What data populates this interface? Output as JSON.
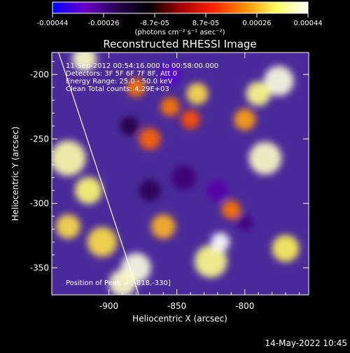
{
  "colorbar": {
    "ticks": [
      "-0.00044",
      "-0.00026",
      "-8.7e-05",
      "8.7e-05",
      "0.00026",
      "0.00044"
    ],
    "unit_label": "(photons cm⁻² s⁻¹ asec⁻²)",
    "range": [
      -0.00044,
      0.00044
    ],
    "stops": [
      "#0000ff",
      "#6a00c8",
      "#2a0055",
      "#000000",
      "#a00000",
      "#ff2000",
      "#ff8c00",
      "#ffff60",
      "#ffffff"
    ]
  },
  "chart_data": {
    "type": "heatmap",
    "title": "Reconstructed RHESSI Image",
    "xlabel": "Heliocentric X (arcsec)",
    "ylabel": "Heliocentric Y (arcsec)",
    "xlim": [
      -942,
      -753
    ],
    "ylim": [
      -371,
      -183
    ],
    "x_ticks": [
      -900,
      -850,
      -800
    ],
    "y_ticks": [
      -350,
      -300,
      -250,
      -200
    ],
    "x_tick_labels": [
      "-900",
      "-850",
      "-800"
    ],
    "y_tick_labels": [
      "-350",
      "-300",
      "-250",
      "-200"
    ],
    "limb_line": [
      [
        -937,
        -183
      ],
      [
        -878,
        -371
      ]
    ],
    "regions": [
      {
        "x": -918,
        "y": -188,
        "r": 9,
        "value": 0.0004
      },
      {
        "x": -775,
        "y": -205,
        "r": 11,
        "value": 0.00042
      },
      {
        "x": -790,
        "y": -215,
        "r": 9,
        "value": 0.00036
      },
      {
        "x": -835,
        "y": -215,
        "r": 8,
        "value": 0.0003
      },
      {
        "x": -930,
        "y": -265,
        "r": 13,
        "value": 0.00038
      },
      {
        "x": -915,
        "y": -290,
        "r": 10,
        "value": 0.00034
      },
      {
        "x": -930,
        "y": -318,
        "r": 9,
        "value": 0.0003
      },
      {
        "x": -785,
        "y": -265,
        "r": 12,
        "value": 0.0004
      },
      {
        "x": -770,
        "y": -335,
        "r": 10,
        "value": 0.00032
      },
      {
        "x": -825,
        "y": -345,
        "r": 12,
        "value": 0.00036
      },
      {
        "x": -818,
        "y": -330,
        "r": 7,
        "value": 0.00044
      },
      {
        "x": -905,
        "y": -330,
        "r": 11,
        "value": 0.0003
      },
      {
        "x": -880,
        "y": -350,
        "r": 11,
        "value": 0.00042
      },
      {
        "x": -890,
        "y": -362,
        "r": 10,
        "value": 0.0004
      },
      {
        "x": -860,
        "y": -318,
        "r": 9,
        "value": 0.00026
      },
      {
        "x": -855,
        "y": -225,
        "r": 7,
        "value": 0.0002
      },
      {
        "x": -870,
        "y": -250,
        "r": 8,
        "value": 0.00018
      },
      {
        "x": -880,
        "y": -210,
        "r": 7,
        "value": 0.0002
      },
      {
        "x": -840,
        "y": -235,
        "r": 7,
        "value": 0.00016
      },
      {
        "x": -800,
        "y": -235,
        "r": 8,
        "value": 0.00024
      },
      {
        "x": -810,
        "y": -305,
        "r": 7,
        "value": 0.0002
      },
      {
        "x": -845,
        "y": -280,
        "r": 9,
        "value": -0.00025
      },
      {
        "x": -820,
        "y": -290,
        "r": 8,
        "value": -0.0003
      },
      {
        "x": -855,
        "y": -200,
        "r": 8,
        "value": -0.00035
      },
      {
        "x": -870,
        "y": -290,
        "r": 8,
        "value": -0.00022
      },
      {
        "x": -800,
        "y": -315,
        "r": 6,
        "value": -0.00026
      },
      {
        "x": -885,
        "y": -240,
        "r": 7,
        "value": -0.0002
      }
    ]
  },
  "info_lines": [
    "11-Sep-2012 00:54:16.000 to 00:58:00.000",
    "Detectors: 3F 5F 6F 7F 8F, Att 0",
    "Energy Range: 25.0 - 50.0 keV",
    "Clean     Total counts: 4.29E+03"
  ],
  "peak_label": "Position of Peak = [-818,-330]",
  "timestamp": "14-May-2022 10:45"
}
